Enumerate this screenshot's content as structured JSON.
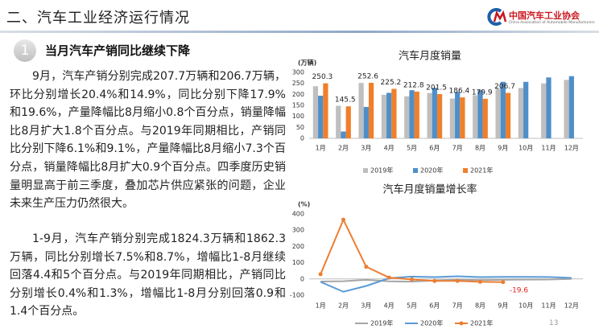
{
  "header": {
    "title": "二、汽车工业经济运行情况",
    "logo_cn": "中国汽车工业协会",
    "logo_en": "China Association of Automobile Manufacturers"
  },
  "section": {
    "number": "1",
    "title": "当月汽车产销同比继续下降"
  },
  "paragraphs": [
    "9月，汽车产销分别完成207.7万辆和206.7万辆，环比分别增长20.4%和14.9%，同比分别下降17.9%和19.6%，产量降幅比8月缩小0.8个百分点，销量降幅比8月扩大1.8个百分点。与2019年同期相比，产销同比分别下降6.1%和9.1%，产量降幅比8月缩小7.3个百分点，销量降幅比8月扩大0.9个百分点。四季度历史销量明显高于前三季度，叠加芯片供应紧张的问题，企业未来生产压力仍然很大。",
    "1-9月，汽车产销分别完成1824.3万辆和1862.3万辆，同比分别增长7.5%和8.7%，增幅比1-8月继续回落4.4和5个百分点。与2019年同期相比，产销同比分别增长0.4%和1.3%，增幅比1-8月分别回落0.9和1.4个百分点。"
  ],
  "page_number": "13",
  "chart_data": [
    {
      "type": "bar",
      "title": "汽车月度销量",
      "unit_label": "(万辆)",
      "categories": [
        "1月",
        "2月",
        "3月",
        "4月",
        "5月",
        "6月",
        "7月",
        "8月",
        "9月",
        "10月",
        "11月",
        "12月"
      ],
      "series": [
        {
          "name": "2019年",
          "color": "#bfbfbf",
          "values": [
            237,
            148,
            252,
            198,
            191,
            206,
            181,
            196,
            227,
            229,
            250,
            266
          ]
        },
        {
          "name": "2020年",
          "color": "#4f8fc9",
          "values": [
            194,
            31,
            143,
            207,
            219,
            230,
            211,
            219,
            257,
            257,
            277,
            283
          ]
        },
        {
          "name": "2021年",
          "color": "#f07f2a",
          "values": [
            250.3,
            145.5,
            252.6,
            225.2,
            212.8,
            201.5,
            186.4,
            179.9,
            206.7,
            null,
            null,
            null
          ],
          "data_labels": true
        }
      ],
      "ylim": [
        0,
        300
      ],
      "yticks": [
        0,
        50,
        100,
        150,
        200,
        250,
        300
      ],
      "grid": false,
      "legend": "bottom"
    },
    {
      "type": "line",
      "title": "汽车月度销量增长率",
      "unit_label": "(%)",
      "categories": [
        "1月",
        "2月",
        "3月",
        "4月",
        "5月",
        "6月",
        "7月",
        "8月",
        "9月",
        "10月",
        "11月",
        "12月"
      ],
      "series": [
        {
          "name": "2019年",
          "color": "#a6a6a6",
          "values": [
            -15.8,
            -13.8,
            -5.2,
            -14.6,
            -16.4,
            -9.6,
            -4.3,
            -6.9,
            -5.2,
            -4.0,
            -3.6,
            0.1
          ]
        },
        {
          "name": "2020年",
          "color": "#5b9bd5",
          "values": [
            -18,
            -79,
            -43,
            4.4,
            14.5,
            11.6,
            16.4,
            11.6,
            12.8,
            12.5,
            11.7,
            6.4
          ]
        },
        {
          "name": "2021年",
          "color": "#ed7d31",
          "marker": true,
          "values": [
            29.5,
            364.7,
            74.9,
            8.6,
            -3.1,
            -12.4,
            -11.9,
            -17.8,
            -19.6,
            null,
            null,
            null
          ],
          "value_labels": [
            null,
            null,
            null,
            null,
            null,
            null,
            null,
            null,
            "-19.6"
          ]
        }
      ],
      "ylim": [
        -100,
        400
      ],
      "yticks": [
        -100,
        0,
        100,
        200,
        300,
        400
      ],
      "grid": false,
      "legend": "bottom"
    }
  ]
}
